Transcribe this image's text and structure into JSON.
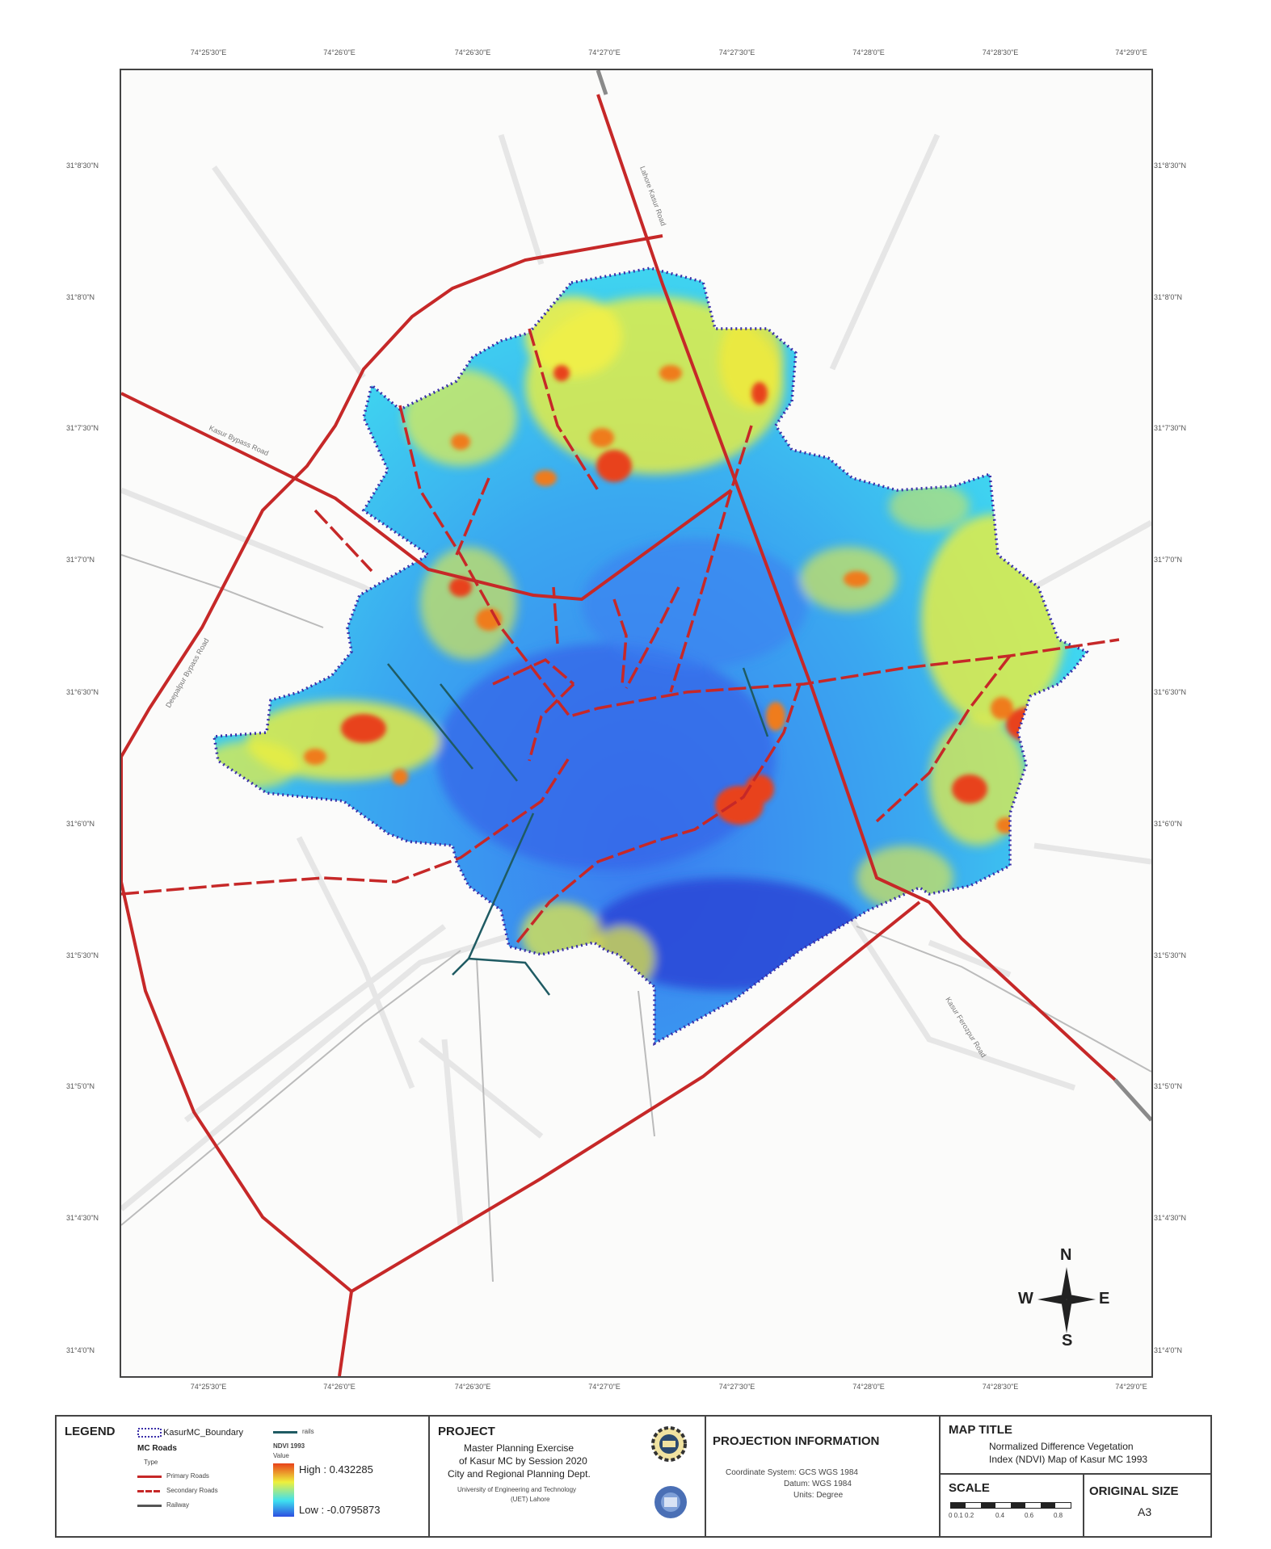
{
  "colors": {
    "frame": "#444444",
    "major_road": "#c62828",
    "secondary_road": "#c62828",
    "railway": "#1f5b63",
    "boundary": "#3a2fa8",
    "ndvi_low": "#2d4ee0",
    "ndvi_mid": "#3ee0f0",
    "ndvi_high1": "#f2f23a",
    "ndvi_high2": "#e82a12"
  },
  "ticks": {
    "top": [
      "74°25'30\"E",
      "74°26'0\"E",
      "74°26'30\"E",
      "74°27'0\"E",
      "74°27'30\"E",
      "74°28'0\"E",
      "74°28'30\"E",
      "74°29'0\"E"
    ],
    "bottom": [
      "74°25'30\"E",
      "74°26'0\"E",
      "74°26'30\"E",
      "74°27'0\"E",
      "74°27'30\"E",
      "74°28'0\"E",
      "74°28'30\"E",
      "74°29'0\"E"
    ],
    "left": [
      "31°8'30\"N",
      "31°8'0\"N",
      "31°7'30\"N",
      "31°7'0\"N",
      "31°6'30\"N",
      "31°6'0\"N",
      "31°5'30\"N",
      "31°5'0\"N",
      "31°4'30\"N",
      "31°4'0\"N"
    ],
    "right": [
      "31°8'30\"N",
      "31°8'0\"N",
      "31°7'30\"N",
      "31°7'0\"N",
      "31°6'30\"N",
      "31°6'0\"N",
      "31°5'30\"N",
      "31°5'0\"N",
      "31°4'30\"N",
      "31°4'0\"N"
    ]
  },
  "road_labels": {
    "r1": "Lahore Kasur Road",
    "r2": "Kasur Bypass Road",
    "r3": "Deepalpur Bypass Road",
    "r4": "Kasur Ferozpur Road"
  },
  "compass": {
    "n": "N",
    "s": "S",
    "e": "E",
    "w": "W"
  },
  "legend": {
    "title": "LEGEND",
    "boundary": "KasurMC_Boundary",
    "railway": "rails",
    "mc_roads": "MC Roads",
    "type": "Type",
    "primary": "Primary Roads",
    "secondary": "Secondary Roads",
    "railway_item": "Railway",
    "ndvi_heading": "NDVI 1993",
    "value": "Value",
    "high": "High : 0.432285",
    "low": "Low : -0.0795873"
  },
  "project": {
    "title": "PROJECT",
    "line1": "Master Planning Exercise",
    "line2": "of Kasur MC by Session 2020",
    "line3": "City and Regional Planning Dept.",
    "line4": "University of Engineering and Technology",
    "line5": "(UET) Lahore"
  },
  "projection": {
    "title": "PROJECTION INFORMATION",
    "line1": "Coordinate System: GCS WGS 1984",
    "line2": "Datum: WGS 1984",
    "line3": "Units: Degree"
  },
  "map_title": {
    "title": "MAP TITLE",
    "line1": "Normalized Difference Vegetation",
    "line2": "Index (NDVI) Map of Kasur MC 1993"
  },
  "scale": {
    "title": "SCALE",
    "labels": [
      "0 0.1 0.2",
      "0.4",
      "0.6",
      "0.8"
    ]
  },
  "original_size": {
    "title": "ORIGINAL SIZE",
    "value": "A3"
  }
}
